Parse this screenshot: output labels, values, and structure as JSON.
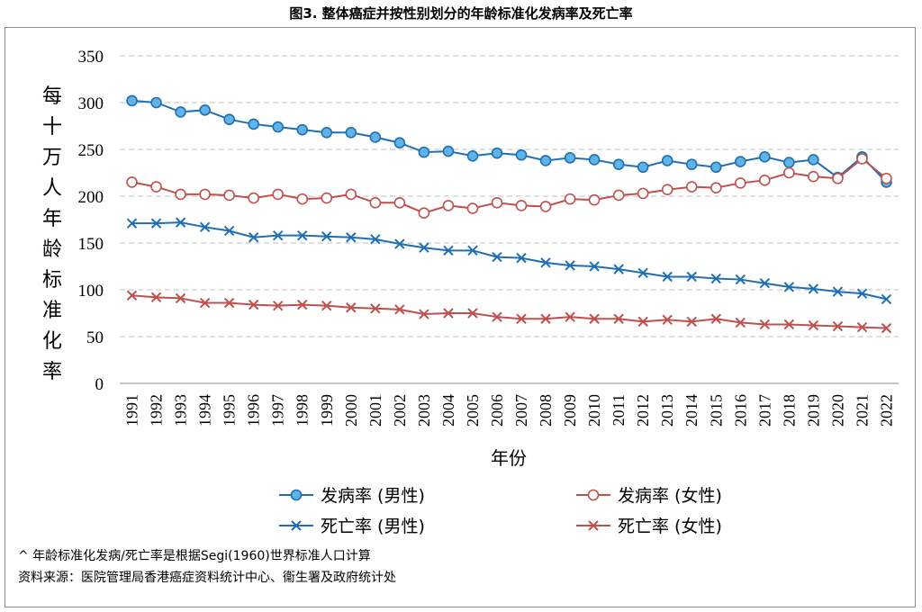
{
  "title": "图3. 整体癌症并按性别划分的年龄标准化发病率及死亡率",
  "footnotes": [
    "^ 年龄标准化发病/死亡率是根据Segi(1960)世界标准人口计算",
    "资料来源：医院管理局香港癌症资料统计中心、衞生署及政府统计处"
  ],
  "colors": {
    "male": "#1f6fb4",
    "male_fill": "#5fb3e6",
    "female": "#c0504d",
    "female_fill": "#ffffff",
    "grid": "#bfbfbf"
  },
  "chart_data": {
    "type": "line",
    "title": "图3. 整体癌症并按性别划分的年龄标准化发病率及死亡率",
    "xlabel": "年份",
    "ylabel": "每十万人年龄标准化率",
    "ylim": [
      0,
      350
    ],
    "yticks": [
      0,
      50,
      100,
      150,
      200,
      250,
      300,
      350
    ],
    "grid": true,
    "legend_position": "bottom",
    "x": [
      "1991",
      "1992",
      "1993",
      "1994",
      "1995",
      "1996",
      "1997",
      "1998",
      "1999",
      "2000",
      "2001",
      "2002",
      "2003",
      "2004",
      "2005",
      "2006",
      "2007",
      "2008",
      "2009",
      "2010",
      "2011",
      "2012",
      "2013",
      "2014",
      "2015",
      "2016",
      "2017",
      "2018",
      "2019",
      "2020",
      "2021",
      "2022"
    ],
    "series": [
      {
        "name": "发病率 (男性)",
        "marker": "circle",
        "color_key": "male",
        "values": [
          302,
          300,
          290,
          292,
          282,
          277,
          274,
          271,
          268,
          268,
          263,
          257,
          247,
          248,
          243,
          246,
          244,
          238,
          241,
          239,
          234,
          231,
          238,
          234,
          231,
          237,
          242,
          236,
          239,
          220,
          242,
          215
        ]
      },
      {
        "name": "发病率 (女性)",
        "marker": "circle",
        "color_key": "female",
        "values": [
          215,
          210,
          202,
          202,
          201,
          198,
          202,
          197,
          198,
          202,
          193,
          193,
          182,
          190,
          187,
          193,
          190,
          189,
          197,
          196,
          201,
          203,
          207,
          210,
          209,
          214,
          217,
          225,
          221,
          219,
          240,
          219
        ]
      },
      {
        "name": "死亡率 (男性)",
        "marker": "x",
        "color_key": "male",
        "values": [
          171,
          171,
          172,
          167,
          163,
          156,
          158,
          158,
          157,
          156,
          154,
          149,
          145,
          142,
          142,
          135,
          134,
          129,
          126,
          125,
          122,
          118,
          114,
          114,
          112,
          111,
          107,
          103,
          101,
          98,
          96,
          90
        ]
      },
      {
        "name": "死亡率 (女性)",
        "marker": "x",
        "color_key": "female",
        "values": [
          94,
          92,
          91,
          86,
          86,
          84,
          83,
          84,
          83,
          81,
          80,
          79,
          74,
          75,
          75,
          71,
          69,
          69,
          71,
          69,
          69,
          66,
          68,
          66,
          69,
          65,
          63,
          63,
          62,
          61,
          60,
          59
        ]
      }
    ]
  }
}
